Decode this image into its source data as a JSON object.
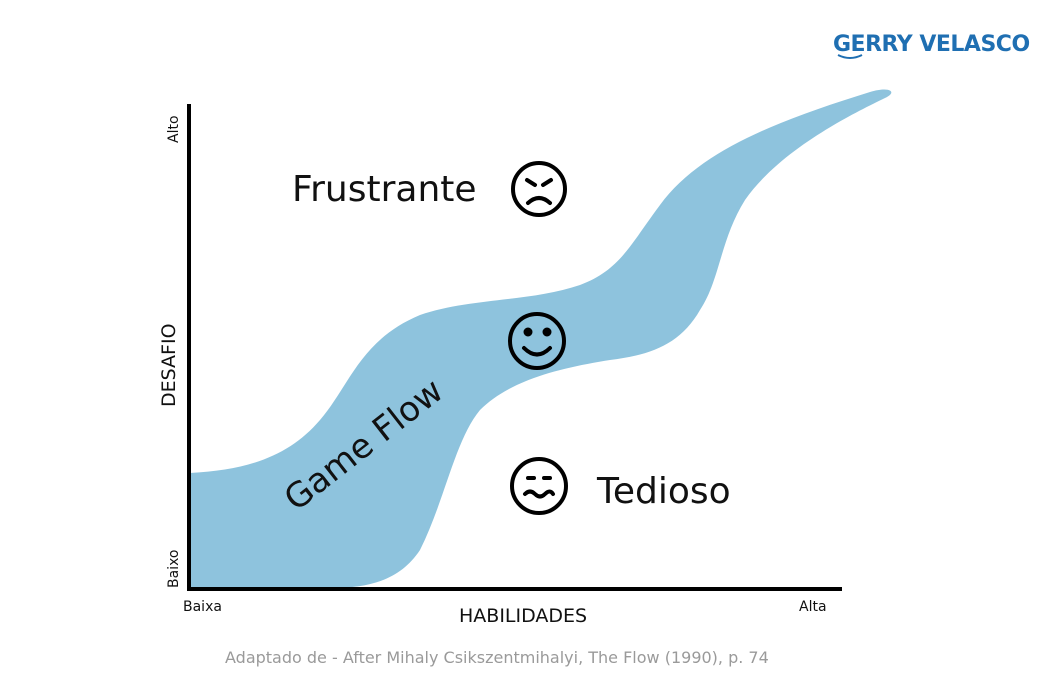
{
  "brand": {
    "logo_text": "GERRY VELASCO",
    "color": "#1f6fb2"
  },
  "diagram": {
    "y_axis": {
      "label": "DESAFIO",
      "low": "Baixo",
      "high": "Alto"
    },
    "x_axis": {
      "label": "HABILIDADES",
      "low": "Baixa",
      "high": "Alta"
    },
    "regions": {
      "frustrating": "Frustrante",
      "flow": "Game Flow",
      "boring": "Tedioso"
    },
    "icons": {
      "frustrating": "angry-face-icon",
      "flow": "smiling-face-icon",
      "boring": "uneasy-face-icon"
    },
    "band_color": "#8ec3dd"
  },
  "caption": "Adaptado de - After Mihaly Csikszentmihalyi, The Flow (1990), p. 74"
}
